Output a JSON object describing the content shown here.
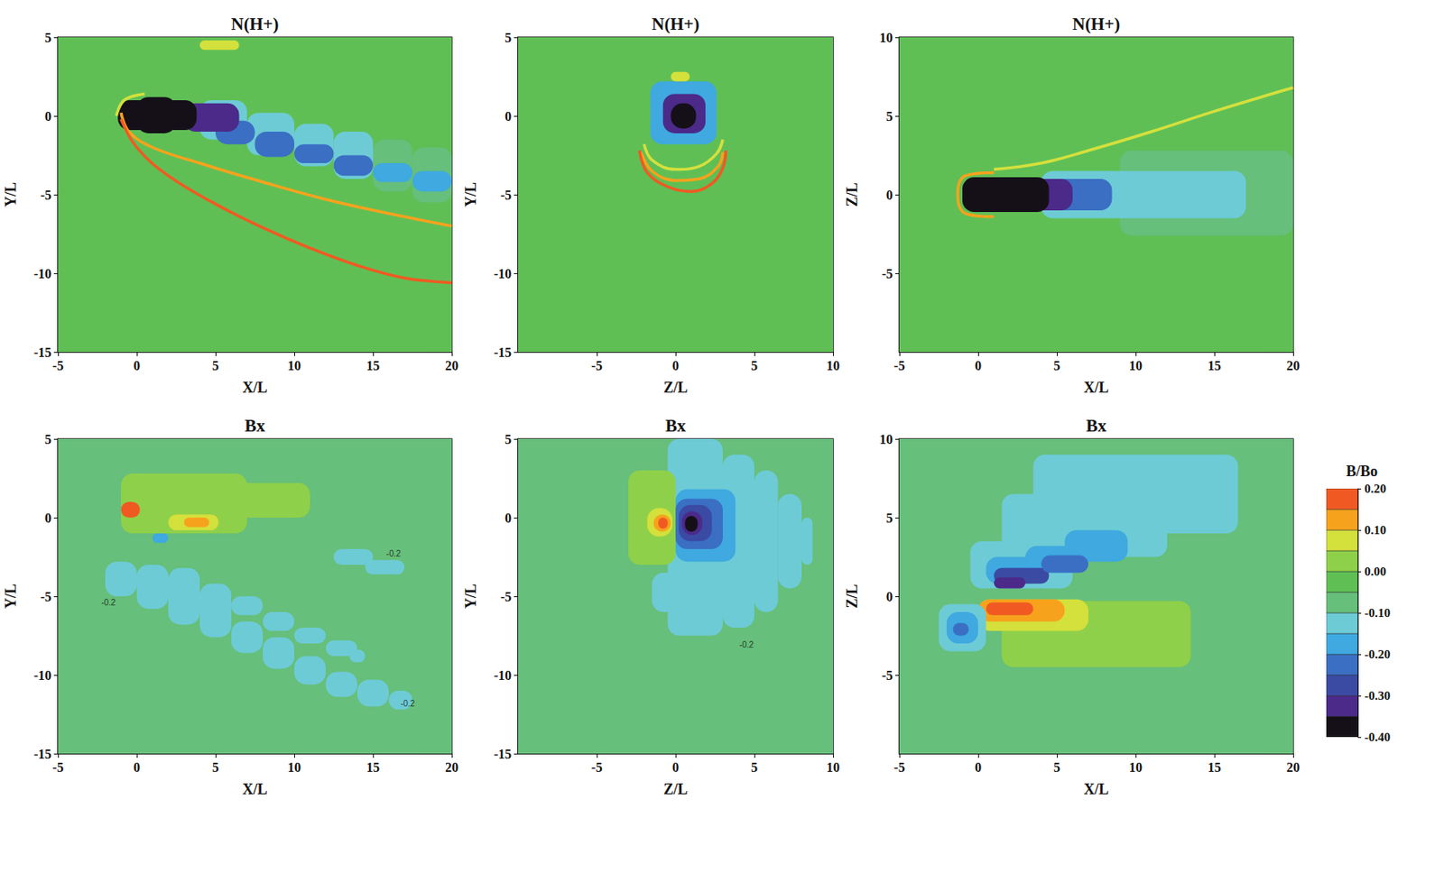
{
  "chart_data": [
    {
      "type": "heatmap",
      "title": "N(H+)",
      "xlabel": "X/L",
      "ylabel": "Y/L",
      "xlim": [
        -5,
        20
      ],
      "ylim": [
        -15,
        5
      ],
      "xticks": [
        -5,
        0,
        5,
        10,
        15,
        20
      ],
      "yticks": [
        -15,
        -10,
        -5,
        0,
        5
      ],
      "color_range": [
        0,
        1.5
      ],
      "background": 0.95,
      "regions": [
        [
          4,
          -1.5,
          7,
          1,
          0.72
        ],
        [
          7,
          -2.5,
          10,
          0.2,
          0.72
        ],
        [
          10,
          -3.2,
          12.5,
          -0.5,
          0.72
        ],
        [
          12.5,
          -4,
          15,
          -1,
          0.72
        ],
        [
          15,
          -4.8,
          17.5,
          -1.5,
          0.75
        ],
        [
          17.5,
          -5.5,
          20,
          -2,
          0.78
        ],
        [
          5,
          -1.8,
          7.5,
          -0.3,
          0.4
        ],
        [
          7.5,
          -2.6,
          10,
          -1,
          0.4
        ],
        [
          10,
          -3,
          12.5,
          -1.8,
          0.45
        ],
        [
          12.5,
          -3.8,
          15,
          -2.5,
          0.45
        ],
        [
          15,
          -4.2,
          17.5,
          -3,
          0.5
        ],
        [
          17.5,
          -4.8,
          20,
          -3.5,
          0.55
        ],
        [
          3,
          -1,
          6.5,
          0.8,
          0.2
        ],
        [
          -1.2,
          -0.9,
          3.8,
          1,
          0.05
        ],
        [
          0,
          -1.1,
          2.5,
          1.2,
          0.05
        ],
        [
          4,
          4.2,
          6.5,
          4.8,
          1.2
        ]
      ],
      "fronts": [
        {
          "value": 1.3,
          "points": [
            [
              -1,
              0.2
            ],
            [
              -0.5,
              -1
            ],
            [
              1,
              -2
            ],
            [
              4,
              -3
            ],
            [
              8,
              -4.2
            ],
            [
              12,
              -5.3
            ],
            [
              16,
              -6.2
            ],
            [
              20,
              -7
            ]
          ]
        },
        {
          "value": 1.45,
          "points": [
            [
              -1,
              -0.2
            ],
            [
              0,
              -2
            ],
            [
              2,
              -3.8
            ],
            [
              5,
              -5.6
            ],
            [
              8,
              -7.1
            ],
            [
              11,
              -8.4
            ],
            [
              14,
              -9.5
            ],
            [
              17,
              -10.3
            ],
            [
              20,
              -10.6
            ]
          ]
        },
        {
          "value": 1.2,
          "points": [
            [
              0.5,
              1.4
            ],
            [
              -0.8,
              1
            ],
            [
              -1.3,
              0
            ]
          ]
        }
      ],
      "annotations": []
    },
    {
      "type": "heatmap",
      "title": "N(H+)",
      "xlabel": "Z/L",
      "ylabel": "Y/L",
      "xlim": [
        -10,
        10
      ],
      "ylim": [
        -15,
        5
      ],
      "xticks": [
        -5,
        0,
        5,
        10
      ],
      "yticks": [
        -15,
        -10,
        -5,
        0,
        5
      ],
      "color_range": [
        0,
        1.5
      ],
      "background": 0.95,
      "regions": [
        [
          -1.6,
          -1.8,
          2.6,
          2.2,
          0.5
        ],
        [
          -0.8,
          -1.1,
          1.9,
          1.4,
          0.2
        ],
        [
          -0.3,
          -0.8,
          1.3,
          0.8,
          0.05
        ],
        [
          -0.3,
          2.2,
          0.9,
          2.8,
          1.2
        ]
      ],
      "fronts": [
        {
          "value": 1.2,
          "points": [
            [
              -2,
              -1.8
            ],
            [
              -1.5,
              -2.8
            ],
            [
              0,
              -3.4
            ],
            [
              1.5,
              -3.2
            ],
            [
              2.6,
              -2.4
            ],
            [
              3,
              -1.5
            ]
          ]
        },
        {
          "value": 1.3,
          "points": [
            [
              -2.2,
              -2.3
            ],
            [
              -1.5,
              -3.5
            ],
            [
              0,
              -4.1
            ],
            [
              1.5,
              -4
            ],
            [
              2.7,
              -3.2
            ],
            [
              3,
              -2.3
            ]
          ]
        },
        {
          "value": 1.45,
          "points": [
            [
              -2.3,
              -2.2
            ],
            [
              -1.8,
              -3.6
            ],
            [
              -0.5,
              -4.5
            ],
            [
              1,
              -4.8
            ],
            [
              2.3,
              -4.3
            ],
            [
              3,
              -3.3
            ],
            [
              3.2,
              -2.2
            ]
          ]
        }
      ],
      "annotations": []
    },
    {
      "type": "heatmap",
      "title": "N(H+)",
      "xlabel": "X/L",
      "ylabel": "Z/L",
      "xlim": [
        -5,
        20
      ],
      "ylim": [
        -10,
        10
      ],
      "xticks": [
        -5,
        0,
        5,
        10,
        15,
        20
      ],
      "yticks": [
        -5,
        0,
        5,
        10
      ],
      "color_range": [
        0,
        1.5
      ],
      "background": 0.95,
      "regions": [
        [
          9,
          -2.6,
          20,
          2.8,
          0.82
        ],
        [
          4,
          -1.5,
          17,
          1.5,
          0.72
        ],
        [
          4,
          -1,
          8.5,
          1,
          0.4
        ],
        [
          2,
          -1,
          6,
          1,
          0.2
        ],
        [
          -1,
          -1.1,
          4.5,
          1.1,
          0.05
        ]
      ],
      "fronts": [
        {
          "value": 1.15,
          "points": [
            [
              1,
              1.6
            ],
            [
              4,
              2
            ],
            [
              7,
              2.8
            ],
            [
              11,
              4
            ],
            [
              15,
              5.3
            ],
            [
              20,
              6.8
            ]
          ]
        },
        {
          "value": 1.3,
          "points": [
            [
              1,
              1.4
            ],
            [
              -0.8,
              1.2
            ],
            [
              -1.3,
              0
            ],
            [
              -0.8,
              -1.2
            ],
            [
              1,
              -1.4
            ]
          ]
        }
      ],
      "annotations": []
    },
    {
      "type": "heatmap",
      "title": "Bx",
      "xlabel": "X/L",
      "ylabel": "Y/L",
      "xlim": [
        -5,
        20
      ],
      "ylim": [
        -15,
        5
      ],
      "xticks": [
        -5,
        0,
        5,
        10,
        15,
        20
      ],
      "yticks": [
        -15,
        -10,
        -5,
        0,
        5
      ],
      "color_range": [
        -0.4,
        0.2
      ],
      "background": -0.07,
      "regions": [
        [
          -2,
          -5,
          0,
          -2.8,
          -0.12
        ],
        [
          0,
          -5.8,
          2,
          -3,
          -0.12
        ],
        [
          2,
          -6.8,
          4,
          -3.2,
          -0.12
        ],
        [
          4,
          -7.6,
          6,
          -4.2,
          -0.12
        ],
        [
          6,
          -8.6,
          8,
          -6.6,
          -0.12
        ],
        [
          8,
          -9.6,
          10,
          -7.6,
          -0.12
        ],
        [
          10,
          -10.6,
          12,
          -8.8,
          -0.12
        ],
        [
          12,
          -11.4,
          14,
          -9.8,
          -0.12
        ],
        [
          14,
          -12,
          16,
          -10.3,
          -0.12
        ],
        [
          16,
          -12.2,
          17.5,
          -11,
          -0.12
        ],
        [
          6,
          -6.2,
          8,
          -5,
          -0.12
        ],
        [
          8,
          -7.2,
          10,
          -6,
          -0.12
        ],
        [
          10,
          -8,
          12,
          -7,
          -0.12
        ],
        [
          12,
          -8.8,
          14,
          -7.8,
          -0.12
        ],
        [
          13.5,
          -9.2,
          14.5,
          -8.4,
          -0.12
        ],
        [
          12.5,
          -3,
          15,
          -2,
          -0.12
        ],
        [
          14.5,
          -3.6,
          17,
          -2.7,
          -0.12
        ],
        [
          -1,
          -1,
          7,
          2.8,
          0.01
        ],
        [
          6,
          0,
          11,
          2.2,
          0.01
        ],
        [
          0,
          -0.6,
          2,
          0.2,
          0.03
        ],
        [
          2,
          -0.8,
          5.2,
          0.2,
          0.08
        ],
        [
          3,
          -0.6,
          4.6,
          0,
          0.12
        ],
        [
          -1,
          0,
          0.2,
          1,
          0.15
        ],
        [
          -0.9,
          0.2,
          -0.1,
          0.9,
          0.2
        ],
        [
          1,
          -1.6,
          2,
          -1,
          -0.18
        ]
      ],
      "fronts": [],
      "annotations": [
        {
          "x": -1.8,
          "y": -5.4,
          "text": "-0.2"
        },
        {
          "x": 17.2,
          "y": -11.8,
          "text": "-0.2"
        },
        {
          "x": 16.3,
          "y": -2.3,
          "text": "-0.2"
        }
      ]
    },
    {
      "type": "heatmap",
      "title": "Bx",
      "xlabel": "Z/L",
      "ylabel": "Y/L",
      "xlim": [
        -10,
        10
      ],
      "ylim": [
        -15,
        5
      ],
      "xticks": [
        -5,
        0,
        5,
        10
      ],
      "yticks": [
        -15,
        -10,
        -5,
        0,
        5
      ],
      "color_range": [
        -0.4,
        0.2
      ],
      "background": -0.07,
      "regions": [
        [
          -1.5,
          -6,
          0.5,
          -3.5,
          -0.12
        ],
        [
          -0.5,
          -7.5,
          3,
          5,
          -0.12
        ],
        [
          3,
          -7,
          5,
          4,
          -0.12
        ],
        [
          5,
          -6,
          6.5,
          3,
          -0.12
        ],
        [
          6.5,
          -4.5,
          8,
          1.5,
          -0.12
        ],
        [
          8,
          -3,
          8.7,
          0,
          -0.12
        ],
        [
          0,
          -2.8,
          3.8,
          1.8,
          -0.17
        ],
        [
          0,
          -2,
          3,
          1.2,
          -0.22
        ],
        [
          0.2,
          -1.5,
          2.3,
          0.8,
          -0.28
        ],
        [
          0.4,
          -1.1,
          1.7,
          0.4,
          -0.33
        ],
        [
          0.6,
          -0.9,
          1.4,
          0.1,
          -0.38
        ],
        [
          -3,
          -3,
          0,
          3,
          0.01
        ],
        [
          -1.8,
          -1.2,
          -0.2,
          0.6,
          0.08
        ],
        [
          -1.4,
          -0.9,
          -0.3,
          0.2,
          0.14
        ],
        [
          -1.1,
          -0.7,
          -0.5,
          0,
          0.19
        ]
      ],
      "fronts": [],
      "annotations": [
        {
          "x": 4.5,
          "y": -8.1,
          "text": "-0.2"
        }
      ]
    },
    {
      "type": "heatmap",
      "title": "Bx",
      "xlabel": "X/L",
      "ylabel": "Z/L",
      "xlim": [
        -5,
        20
      ],
      "ylim": [
        -10,
        10
      ],
      "xticks": [
        -5,
        0,
        5,
        10,
        15,
        20
      ],
      "yticks": [
        -5,
        0,
        5,
        10
      ],
      "color_range": [
        -0.4,
        0.2
      ],
      "background": -0.07,
      "regions": [
        [
          3.5,
          4,
          16.5,
          9,
          -0.12
        ],
        [
          1.5,
          2.5,
          12,
          6.5,
          -0.12
        ],
        [
          -0.5,
          0.5,
          6,
          3.5,
          -0.12
        ],
        [
          0.5,
          0.8,
          4,
          2.5,
          -0.18
        ],
        [
          3,
          1.5,
          7,
          3.2,
          -0.18
        ],
        [
          5.5,
          2.2,
          9.5,
          4.2,
          -0.18
        ],
        [
          1,
          0.8,
          4.5,
          1.8,
          -0.27
        ],
        [
          4,
          1.5,
          7,
          2.6,
          -0.25
        ],
        [
          1,
          0.5,
          3,
          1.2,
          -0.32
        ],
        [
          1.5,
          -4.5,
          13.5,
          -0.3,
          0.01
        ],
        [
          0,
          -2.2,
          7,
          -0.2,
          0.07
        ],
        [
          0,
          -1.6,
          5.5,
          -0.2,
          0.1
        ],
        [
          0,
          -1.4,
          4.5,
          -0.3,
          0.13
        ],
        [
          0.5,
          -1.2,
          3.5,
          -0.4,
          0.18
        ],
        [
          -2.5,
          -3.5,
          0.5,
          -0.5,
          -0.12
        ],
        [
          -2,
          -3,
          0,
          -1,
          -0.17
        ],
        [
          -1.6,
          -2.5,
          -0.6,
          -1.7,
          -0.22
        ]
      ],
      "fronts": [],
      "annotations": []
    },
    {
      "type": "colorbar",
      "title": "B/Bo",
      "ylim": [
        -0.4,
        0.2
      ],
      "yticks": [
        {
          "value": -0.4,
          "label": "-0.40"
        },
        {
          "value": -0.3,
          "label": "-0.30"
        },
        {
          "value": -0.2,
          "label": "-0.20"
        },
        {
          "value": -0.1,
          "label": "-0.10"
        },
        {
          "value": 0,
          "label": "0.00"
        },
        {
          "value": 0.1,
          "label": "0.10"
        },
        {
          "value": 0.2,
          "label": "0.20"
        }
      ]
    }
  ]
}
